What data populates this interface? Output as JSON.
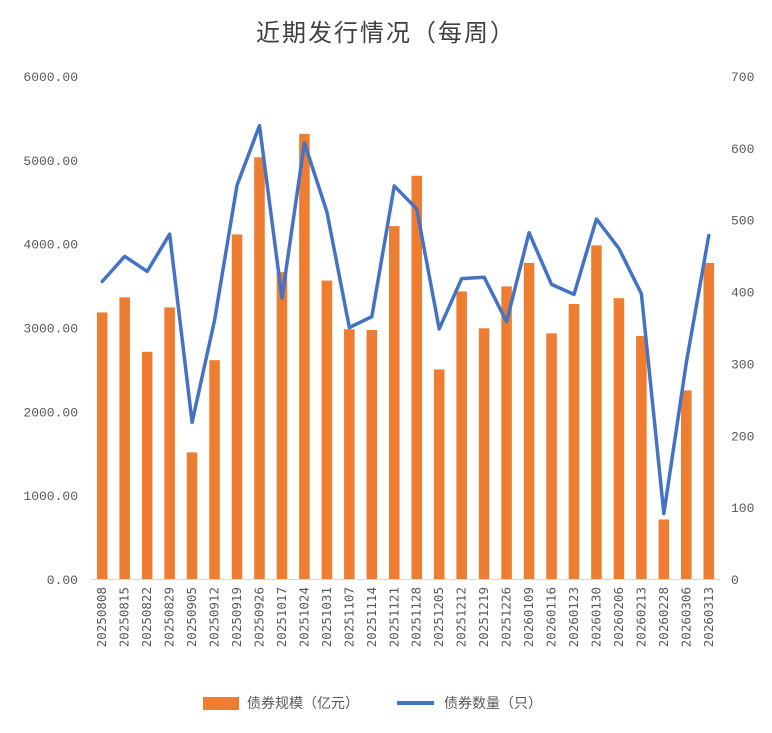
{
  "chart_data": {
    "type": "bar",
    "title": "近期发行情况（每周）",
    "categories": [
      "20250808",
      "20250815",
      "20250822",
      "20250829",
      "20250905",
      "20250912",
      "20250919",
      "20250926",
      "20251017",
      "20251024",
      "20251031",
      "20251107",
      "20251114",
      "20251121",
      "20251128",
      "20251205",
      "20251212",
      "20251219",
      "20251226",
      "20260109",
      "20260116",
      "20260123",
      "20260130",
      "20260206",
      "20260213",
      "20260228",
      "20260306",
      "20260313"
    ],
    "series": [
      {
        "name": "债券规模（亿元）",
        "type": "bar",
        "axis": "left",
        "color": "#ED7D31",
        "values": [
          3180,
          3360,
          2710,
          3240,
          1510,
          2610,
          4110,
          5030,
          3660,
          5310,
          3560,
          2980,
          2970,
          4210,
          4810,
          2500,
          3430,
          2990,
          3490,
          3770,
          2930,
          3280,
          3980,
          3350,
          2900,
          710,
          2250,
          3770
        ]
      },
      {
        "name": "债券数量（只）",
        "type": "line",
        "axis": "right",
        "color": "#4472C4",
        "values": [
          414,
          449,
          428,
          480,
          218,
          360,
          548,
          631,
          391,
          607,
          511,
          350,
          365,
          547,
          515,
          348,
          418,
          420,
          358,
          482,
          410,
          396,
          501,
          460,
          397,
          91,
          301,
          478
        ]
      }
    ],
    "y_left": {
      "min": 0,
      "max": 6000,
      "ticks": [
        "0.00",
        "1000.00",
        "2000.00",
        "3000.00",
        "4000.00",
        "5000.00",
        "6000.00"
      ]
    },
    "y_right": {
      "min": 0,
      "max": 700,
      "ticks": [
        "0",
        "100",
        "200",
        "300",
        "400",
        "500",
        "600",
        "700"
      ]
    },
    "grid": false,
    "legend": "bottom"
  }
}
